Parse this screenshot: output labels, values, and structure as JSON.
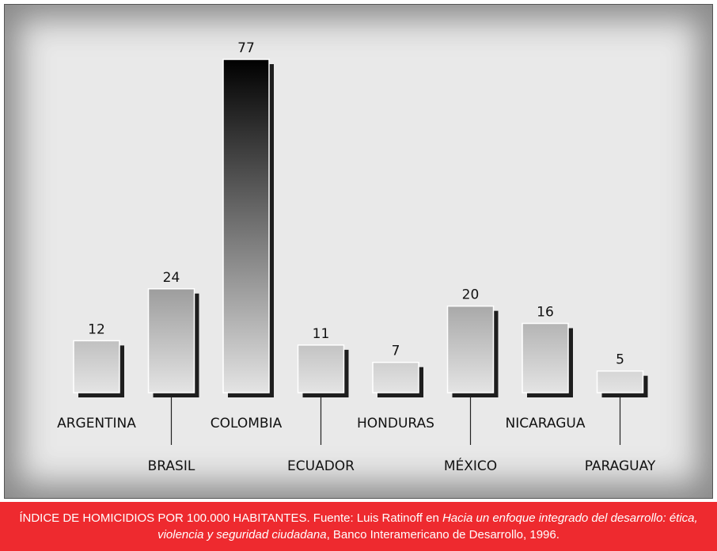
{
  "chart_data": {
    "type": "bar",
    "categories": [
      "ARGENTINA",
      "BRASIL",
      "COLOMBIA",
      "ECUADOR",
      "HONDURAS",
      "MÉXICO",
      "NICARAGUA",
      "PARAGUAY"
    ],
    "values": [
      12,
      24,
      77,
      11,
      7,
      20,
      16,
      5
    ],
    "value_labels": [
      "12",
      "24",
      "77",
      "11",
      "7",
      "20",
      "16",
      "5"
    ],
    "title": "",
    "xlabel": "",
    "ylabel": "",
    "ylim": [
      0,
      77
    ],
    "grid": false,
    "legend": "none",
    "label_stagger": "alternating"
  },
  "caption": {
    "part1": "ÍNDICE DE HOMICIDIOS POR 100.000 HABITANTES. Fuente: Luis Ratinoff en ",
    "title_italic": "Hacia un enfoque integrado del desarrollo: ética, violencia y seguridad ciudadana",
    "part2": ", Banco Interamericano de Desarrollo, 1996."
  },
  "colors": {
    "caption_bg": "#ee2a2f",
    "bar_dark": "#000000",
    "bar_light": "#e4e4e4"
  }
}
